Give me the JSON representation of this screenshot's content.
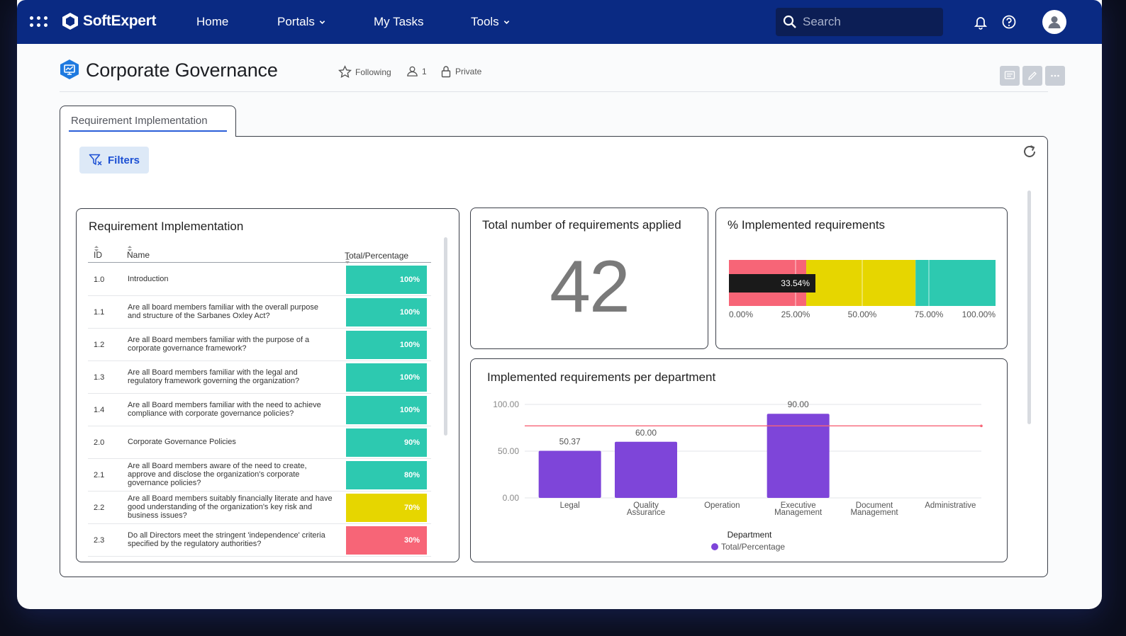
{
  "nav": {
    "brand": "SoftExpert",
    "items": [
      {
        "label": "Home",
        "dropdown": false
      },
      {
        "label": "Portals",
        "dropdown": true
      },
      {
        "label": "My Tasks",
        "dropdown": false
      },
      {
        "label": "Tools",
        "dropdown": true
      }
    ],
    "search_placeholder": "Search"
  },
  "page": {
    "title": "Corporate Governance",
    "following_label": "Following",
    "members_count": "1",
    "privacy_label": "Private"
  },
  "tab": {
    "label": "Requirement Implementation"
  },
  "filters_label": "Filters",
  "table_card": {
    "title": "Requirement Implementation",
    "columns": [
      "ID",
      "Name",
      "Total/Percentage"
    ],
    "rows": [
      {
        "id": "1.0",
        "name": "Introduction",
        "pct": "100%",
        "value": 100,
        "color": "#2dc9b0"
      },
      {
        "id": "1.1",
        "name": "Are all board members familiar with the overall purpose and structure of the Sarbanes Oxley Act?",
        "pct": "100%",
        "value": 100,
        "color": "#2dc9b0"
      },
      {
        "id": "1.2",
        "name": "Are all Board members familiar with the purpose of a corporate governance framework?",
        "pct": "100%",
        "value": 100,
        "color": "#2dc9b0"
      },
      {
        "id": "1.3",
        "name": "Are all Board members familiar with the legal and regulatory framework governing the organization?",
        "pct": "100%",
        "value": 100,
        "color": "#2dc9b0"
      },
      {
        "id": "1.4",
        "name": "Are all Board members familiar with the need to achieve compliance with corporate governance policies?",
        "pct": "100%",
        "value": 100,
        "color": "#2dc9b0"
      },
      {
        "id": "2.0",
        "name": "Corporate Governance Policies",
        "pct": "90%",
        "value": 90,
        "color": "#2dc9b0"
      },
      {
        "id": "2.1",
        "name": "Are all Board members aware of the need to create, approve and disclose the organization's corporate governance policies?",
        "pct": "80%",
        "value": 80,
        "color": "#2dc9b0"
      },
      {
        "id": "2.2",
        "name": "Are all Board members suitably financially literate and have good understanding of the organization's key risk and business issues?",
        "pct": "70%",
        "value": 70,
        "color": "#e6d600"
      },
      {
        "id": "2.3",
        "name": "Do all Directors meet the stringent 'independence' criteria specified by the regulatory authorities?",
        "pct": "30%",
        "value": 30,
        "color": "#f76577"
      }
    ]
  },
  "total_card": {
    "title": "Total number of requirements applied",
    "value": "42"
  },
  "gauge_card": {
    "title": "% Implemented requirements",
    "chart_data": {
      "type": "bar",
      "orientation": "horizontal",
      "bands": [
        {
          "from": 0,
          "to": 29,
          "color": "#f76577"
        },
        {
          "from": 29,
          "to": 70,
          "color": "#e6d600"
        },
        {
          "from": 70,
          "to": 100,
          "color": "#2dc9b0"
        }
      ],
      "value": 33.54,
      "value_label": "33.54%",
      "ticks": [
        "0.00%",
        "25.00%",
        "50.00%",
        "75.00%",
        "100.00%"
      ],
      "xlim": [
        0,
        100
      ]
    }
  },
  "dept_card": {
    "title": "Implemented requirements per department",
    "chart_data": {
      "type": "bar",
      "categories": [
        "Legal",
        "Quality Assurance",
        "Operation",
        "Executive Management",
        "Document Management",
        "Administrative"
      ],
      "values": [
        50.37,
        60.0,
        null,
        90.0,
        null,
        null
      ],
      "value_labels": [
        "50.37",
        "60.00",
        "",
        "90.00",
        "",
        ""
      ],
      "reference_line": 77,
      "ylim": [
        0,
        100
      ],
      "yticks": [
        "0.00",
        "50.00",
        "100.00"
      ],
      "xlabel": "Department",
      "legend": "Total/Percentage",
      "bar_color": "#7e45d9",
      "line_color": "#f76577"
    }
  }
}
